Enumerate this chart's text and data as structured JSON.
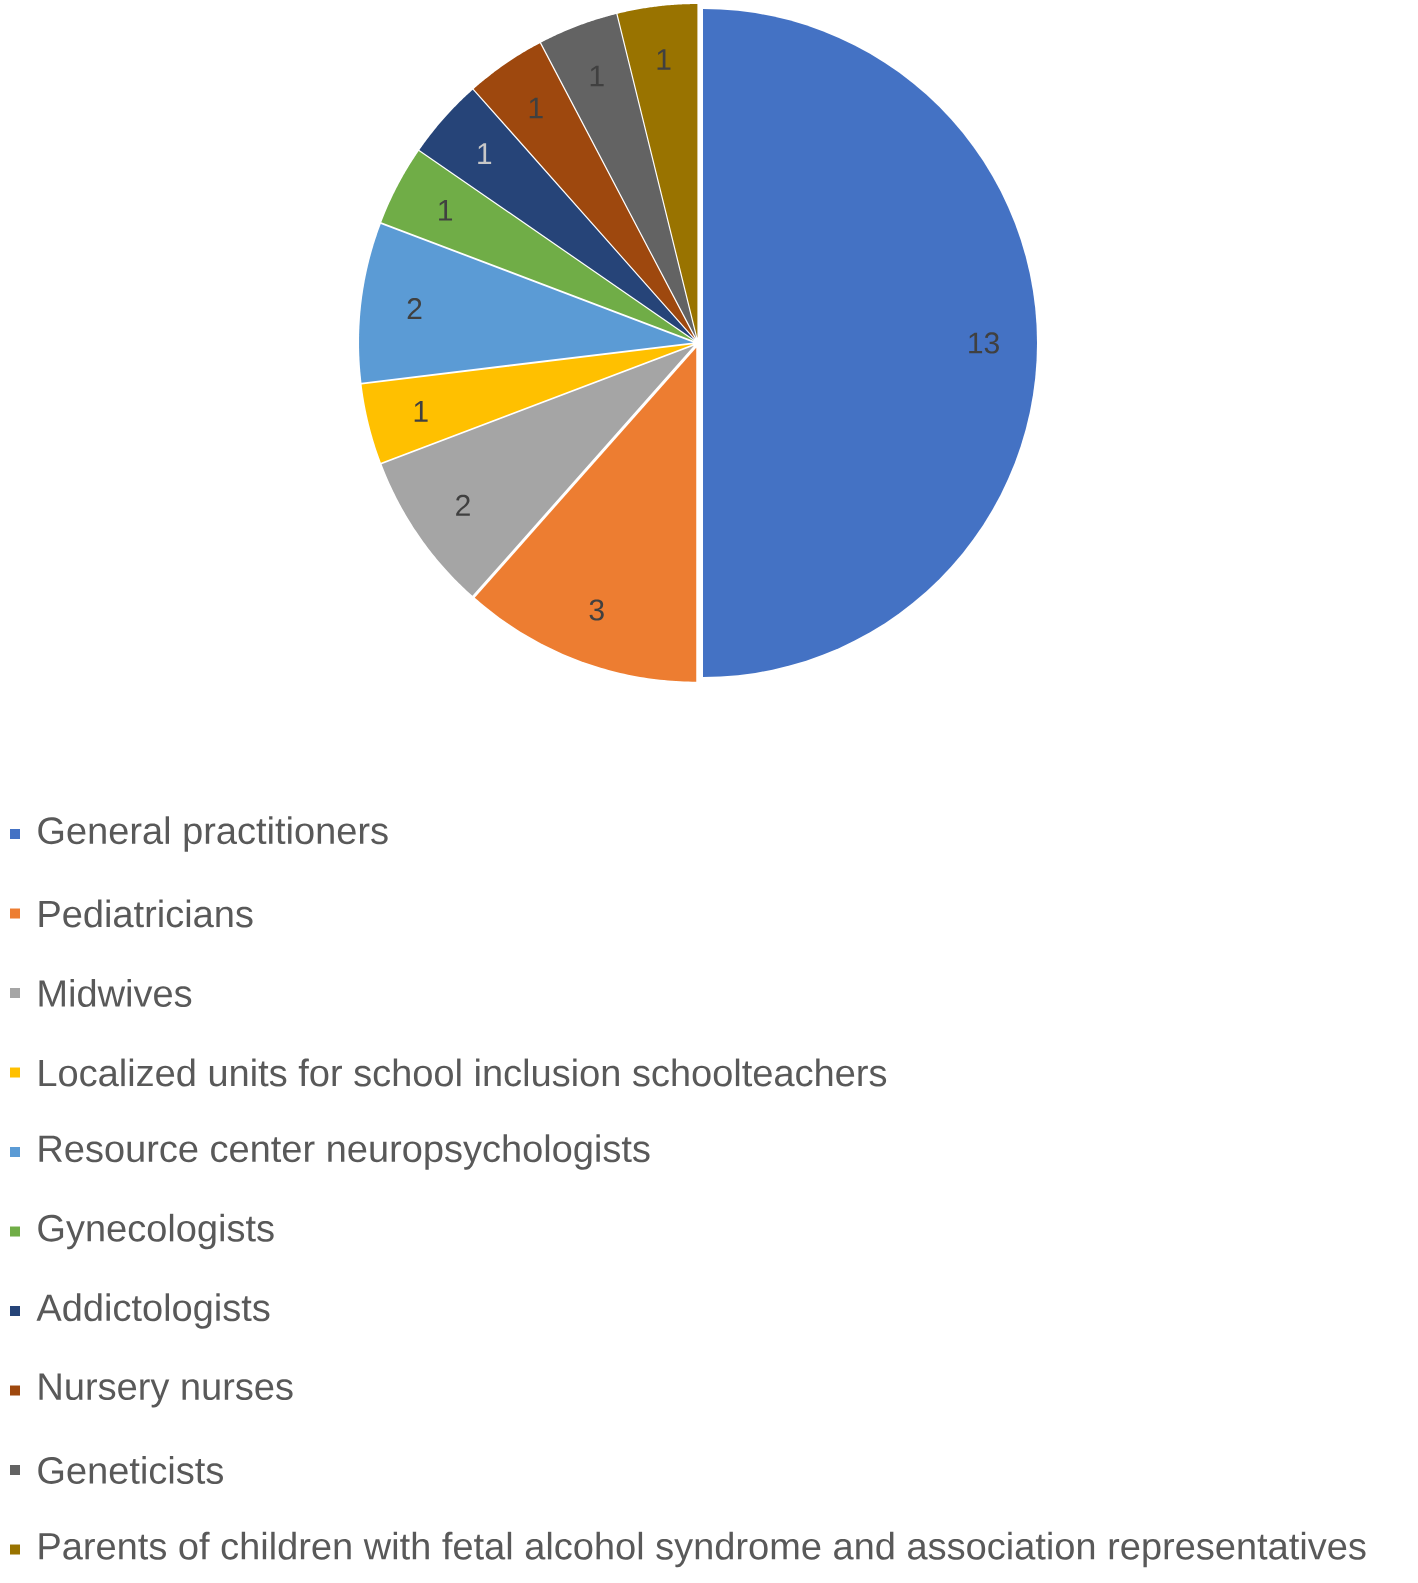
{
  "chart_data": {
    "type": "pie",
    "categories": [
      "General practitioners",
      "Pediatricians",
      "Midwives",
      "Localized units for school inclusion schoolteachers",
      "Resource center neuropsychologists",
      "Gynecologists",
      "Addictologists",
      "Nursery nurses",
      "Geneticists",
      "Parents of children with fetal alcohol syndrome and association representatives"
    ],
    "values": [
      13,
      3,
      2,
      1,
      2,
      1,
      1,
      1,
      1,
      1
    ],
    "colors": [
      "#4472c4",
      "#ed7d31",
      "#a5a5a5",
      "#ffc000",
      "#5b9bd5",
      "#70ad47",
      "#264478",
      "#9e480e",
      "#636363",
      "#997300"
    ],
    "data_labels": true,
    "legend": "bottom"
  }
}
